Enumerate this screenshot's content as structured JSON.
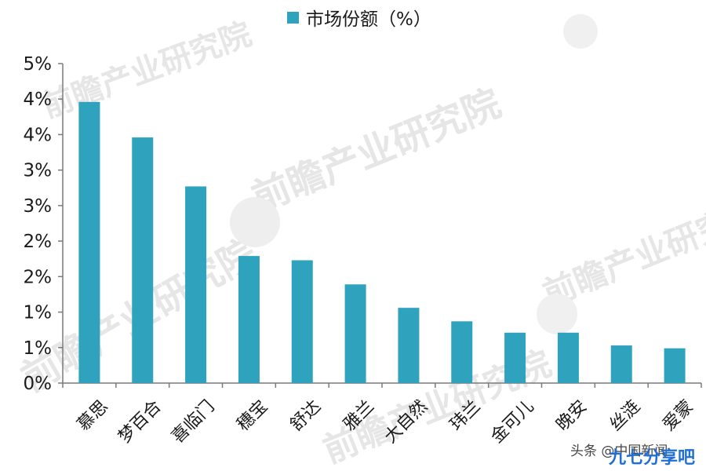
{
  "chart_data": {
    "type": "bar",
    "categories": [
      "慕思",
      "梦百合",
      "喜临门",
      "穗宝",
      "舒达",
      "雅兰",
      "大自然",
      "玮兰",
      "金可儿",
      "晚安",
      "丝涟",
      "爱蒙"
    ],
    "series": [
      {
        "name": "市场份额（%）",
        "values": [
          3.96,
          3.46,
          2.77,
          1.79,
          1.73,
          1.39,
          1.06,
          0.87,
          0.71,
          0.71,
          0.53,
          0.49
        ]
      }
    ],
    "y_tick_labels": [
      "0%",
      "1%",
      "1%",
      "2%",
      "2%",
      "3%",
      "3%",
      "4%",
      "4%",
      "5%"
    ],
    "ylim": [
      0,
      4.5
    ],
    "grid": false,
    "legend_position": "top-center",
    "bar_color": "#2fa3bd",
    "watermark": "前瞻产业研究院",
    "footer_credit": "头条 @中国新闻",
    "footer_brand": "九七分享吧",
    "footer_brand_color": "#1f6fd6"
  }
}
